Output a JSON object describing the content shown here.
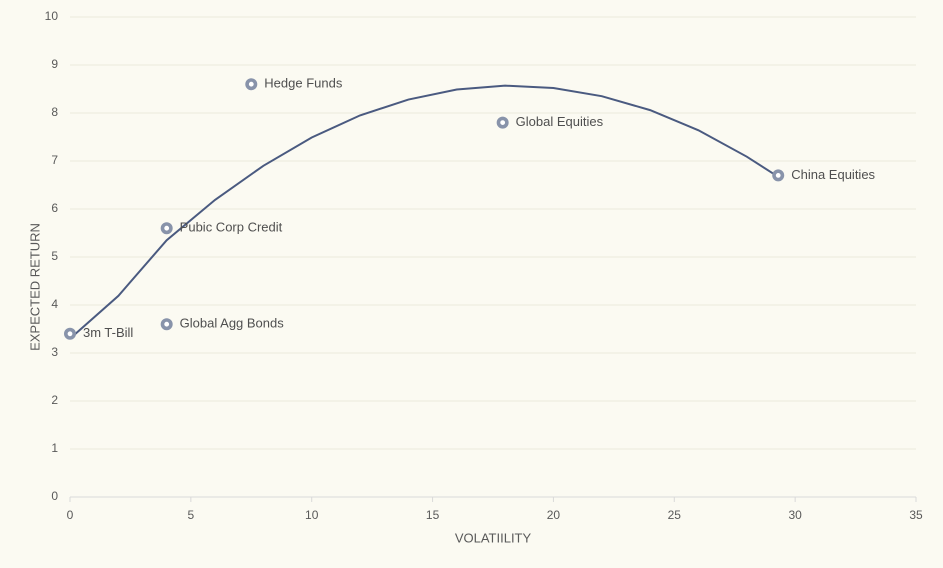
{
  "chart_data": {
    "type": "scatter",
    "x_label": "VOLATIILITY",
    "y_label": "EXPECTED RETURN",
    "x": [
      0,
      4,
      4,
      7.5,
      17.9,
      29.3
    ],
    "values": [
      3.4,
      3.6,
      5.6,
      8.6,
      7.8,
      6.7
    ],
    "point_labels": [
      "3m T-Bill",
      "Global Agg Bonds",
      "Pubic Corp Credit",
      "Hedge Funds",
      "Global Equities",
      "China Equities"
    ],
    "color": "#8893aa",
    "trendline": {
      "color": "#4a5a80",
      "x": [
        0,
        2,
        4,
        6,
        8,
        10,
        12,
        14,
        16,
        18,
        20,
        22,
        24,
        26,
        28,
        29.3
      ],
      "values": [
        3.3,
        4.19,
        5.35,
        6.19,
        6.9,
        7.49,
        7.95,
        8.28,
        8.49,
        8.57,
        8.52,
        8.35,
        8.06,
        7.64,
        7.09,
        6.67
      ]
    },
    "xlim": [
      0,
      35
    ],
    "xticks": [
      0,
      5,
      10,
      15,
      20,
      25,
      30,
      35
    ],
    "ylim": [
      0,
      10
    ],
    "yticks": [
      0,
      1,
      2,
      3,
      4,
      5,
      6,
      7,
      8,
      9,
      10
    ],
    "grid": true
  }
}
